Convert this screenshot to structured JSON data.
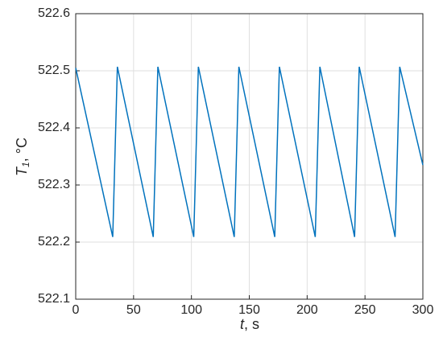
{
  "chart_data": {
    "type": "line",
    "xlabel": [
      "t",
      ", s"
    ],
    "ylabel": [
      "T",
      "1",
      ", °C"
    ],
    "x": [
      0,
      32,
      36,
      67,
      71,
      102,
      106,
      137,
      141,
      172,
      176,
      207,
      211,
      241,
      245,
      276,
      280,
      300
    ],
    "series": [
      {
        "color": "#0072bd",
        "values": [
          522.505,
          522.209,
          522.507,
          522.209,
          522.507,
          522.209,
          522.507,
          522.209,
          522.507,
          522.209,
          522.507,
          522.209,
          522.507,
          522.209,
          522.507,
          522.209,
          522.507,
          522.335
        ]
      }
    ],
    "xlim": [
      0,
      300
    ],
    "xticks": [
      0,
      50,
      100,
      150,
      200,
      250,
      300
    ],
    "ylim": [
      522.1,
      522.6
    ],
    "yticks": [
      522.1,
      522.2,
      522.3,
      522.4,
      522.5,
      522.6
    ],
    "grid": true
  }
}
